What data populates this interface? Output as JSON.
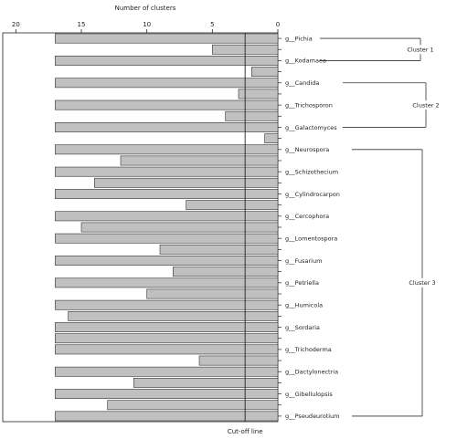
{
  "chart_data": {
    "type": "bar",
    "orientation": "horizontal",
    "x_direction": "reversed",
    "xlabel": "Number of clusters",
    "xlim": [
      21,
      0
    ],
    "x_ticks": [
      20,
      15,
      10,
      5,
      0
    ],
    "cutoff": {
      "label": "Cut-off line",
      "value": 2.5
    },
    "colors": {
      "bar": "#c0c0c0",
      "bar_stroke": "#333333",
      "axis": "#222222",
      "bracket": "#333333"
    },
    "rows": [
      {
        "label": "g__Pichia",
        "value": 17
      },
      {
        "label": "",
        "value": 5
      },
      {
        "label": "g__Kodamaea",
        "value": 17
      },
      {
        "label": "",
        "value": 2
      },
      {
        "label": "g__Candida",
        "value": 17
      },
      {
        "label": "",
        "value": 3
      },
      {
        "label": "g__Trichosporon",
        "value": 17
      },
      {
        "label": "",
        "value": 4
      },
      {
        "label": "g__Galactomyces",
        "value": 17
      },
      {
        "label": "",
        "value": 1
      },
      {
        "label": "g__Neurospora",
        "value": 17
      },
      {
        "label": "",
        "value": 12
      },
      {
        "label": "g__Schizothecium",
        "value": 17
      },
      {
        "label": "",
        "value": 14
      },
      {
        "label": "g__Cylindrocarpon",
        "value": 17
      },
      {
        "label": "",
        "value": 7
      },
      {
        "label": "g__Cercophora",
        "value": 17
      },
      {
        "label": "",
        "value": 15
      },
      {
        "label": "g__Lomentospora",
        "value": 17
      },
      {
        "label": "",
        "value": 9
      },
      {
        "label": "g__Fusarium",
        "value": 17
      },
      {
        "label": "",
        "value": 8
      },
      {
        "label": "g__Petriella",
        "value": 17
      },
      {
        "label": "",
        "value": 10
      },
      {
        "label": "g__Humicola",
        "value": 17
      },
      {
        "label": "",
        "value": 16
      },
      {
        "label": "g__Sordaria",
        "value": 17
      },
      {
        "label": "",
        "value": 17
      },
      {
        "label": "g__Trichoderma",
        "value": 17
      },
      {
        "label": "",
        "value": 6
      },
      {
        "label": "g__Dactylonectria",
        "value": 17
      },
      {
        "label": "",
        "value": 11
      },
      {
        "label": "g__Gibellulopsis",
        "value": 17
      },
      {
        "label": "",
        "value": 13
      },
      {
        "label": "g__Pseudeurotium",
        "value": 17
      }
    ],
    "clusters": [
      {
        "label": "Cluster 1",
        "from_row": 0,
        "to_row": 2
      },
      {
        "label": "Cluster 2",
        "from_row": 4,
        "to_row": 8
      },
      {
        "label": "Cluster 3",
        "from_row": 10,
        "to_row": 34
      }
    ]
  }
}
